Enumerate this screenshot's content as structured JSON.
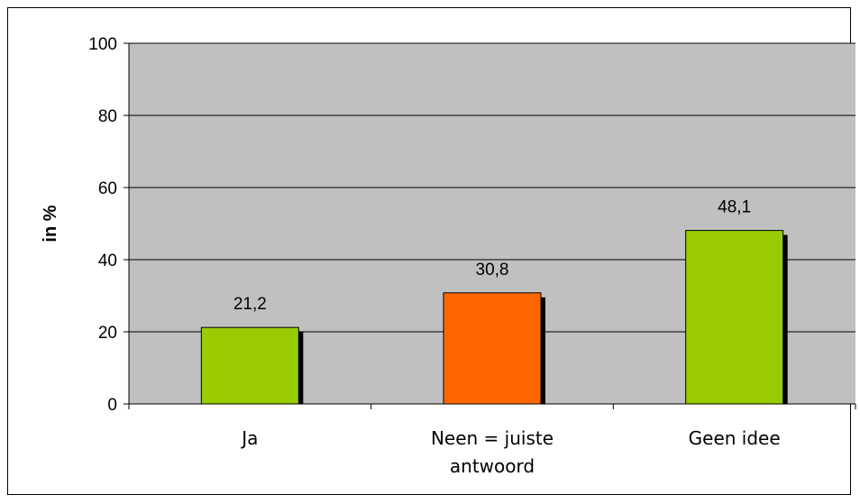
{
  "chart_data": {
    "type": "bar",
    "categories": [
      [
        "Ja"
      ],
      [
        "Neen = juiste",
        "antwoord"
      ],
      [
        "Geen idee"
      ]
    ],
    "values": [
      21.2,
      30.8,
      48.1
    ],
    "value_labels": [
      "21,2",
      "30,8",
      "48,1"
    ],
    "bar_colors": [
      "#99cc00",
      "#ff6600",
      "#99cc00"
    ],
    "ylabel": "in %",
    "ylim": [
      0,
      100
    ],
    "yticks": [
      0,
      20,
      40,
      60,
      80,
      100
    ],
    "grid": true,
    "plot_background": "#c0c0c0",
    "legend": "none"
  }
}
